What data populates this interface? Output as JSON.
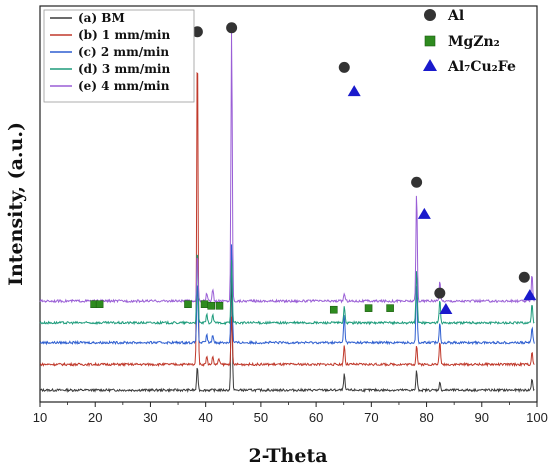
{
  "chart_data": {
    "type": "line",
    "xlabel": "2-Theta",
    "ylabel": "Intensity, (a.u.)",
    "xlim": [
      10,
      100
    ],
    "x_ticks": [
      10,
      20,
      30,
      40,
      50,
      60,
      70,
      80,
      90,
      100
    ],
    "series": [
      {
        "name": "(a)  BM",
        "color": "#3a3a3a",
        "baseline": 0.03,
        "peaks": [
          [
            38.5,
            0.06
          ],
          [
            44.7,
            0.33
          ],
          [
            65.1,
            0.04
          ],
          [
            78.2,
            0.05
          ],
          [
            82.4,
            0.02
          ],
          [
            99.1,
            0.03
          ]
        ]
      },
      {
        "name": "(b) 1 mm/min",
        "color": "#c0392b",
        "baseline": 0.095,
        "peaks": [
          [
            38.5,
            0.83
          ],
          [
            40.2,
            0.02
          ],
          [
            41.3,
            0.02
          ],
          [
            42.4,
            0.015
          ],
          [
            44.7,
            0.12
          ],
          [
            65.1,
            0.05
          ],
          [
            78.2,
            0.05
          ],
          [
            82.4,
            0.06
          ],
          [
            99.1,
            0.03
          ]
        ]
      },
      {
        "name": "(c) 2 mm/min",
        "color": "#2f5fd0",
        "baseline": 0.15,
        "peaks": [
          [
            38.5,
            0.16
          ],
          [
            40.2,
            0.02
          ],
          [
            41.3,
            0.02
          ],
          [
            44.7,
            0.25
          ],
          [
            65.1,
            0.07
          ],
          [
            78.2,
            0.15
          ],
          [
            82.4,
            0.05
          ],
          [
            99.1,
            0.04
          ]
        ]
      },
      {
        "name": "(d) 3 mm/min",
        "color": "#1e9c7c",
        "baseline": 0.2,
        "peaks": [
          [
            38.5,
            0.19
          ],
          [
            40.2,
            0.02
          ],
          [
            41.3,
            0.02
          ],
          [
            44.7,
            0.16
          ],
          [
            65.1,
            0.04
          ],
          [
            78.2,
            0.14
          ],
          [
            82.4,
            0.06
          ],
          [
            99.1,
            0.05
          ]
        ]
      },
      {
        "name": "(e) 4 mm/min",
        "color": "#9a5fd6",
        "baseline": 0.255,
        "peaks": [
          [
            38.5,
            0.12
          ],
          [
            40.2,
            0.02
          ],
          [
            41.3,
            0.03
          ],
          [
            44.7,
            0.69
          ],
          [
            65.1,
            0.02
          ],
          [
            78.2,
            0.28
          ],
          [
            82.4,
            0.05
          ],
          [
            99.1,
            0.07
          ]
        ]
      }
    ],
    "phase_legend": [
      {
        "name": "Al",
        "marker": "circle",
        "color": "#333333"
      },
      {
        "name": "MgZn₂",
        "marker": "square",
        "color": "#2e8b1f"
      },
      {
        "name": "Al₇Cu₂Fe",
        "marker": "triangle",
        "color": "#1a1acc"
      }
    ],
    "phase_markers": {
      "Al": [
        [
          38.5,
          0.935
        ],
        [
          44.7,
          0.945
        ],
        [
          65.1,
          0.845
        ],
        [
          78.2,
          0.555
        ],
        [
          82.4,
          0.275
        ],
        [
          97.7,
          0.315
        ]
      ],
      "MgZn2": [
        [
          19.8,
          0.247
        ],
        [
          20.8,
          0.247
        ],
        [
          36.8,
          0.247
        ],
        [
          39.8,
          0.247
        ],
        [
          41.0,
          0.243
        ],
        [
          42.5,
          0.243
        ],
        [
          63.2,
          0.233
        ],
        [
          69.5,
          0.237
        ],
        [
          73.4,
          0.237
        ]
      ],
      "Al7Cu2Fe": [
        [
          66.9,
          0.785
        ],
        [
          79.6,
          0.475
        ],
        [
          83.5,
          0.235
        ],
        [
          98.7,
          0.27
        ]
      ]
    },
    "grid": false,
    "legend_position": "top-left"
  }
}
